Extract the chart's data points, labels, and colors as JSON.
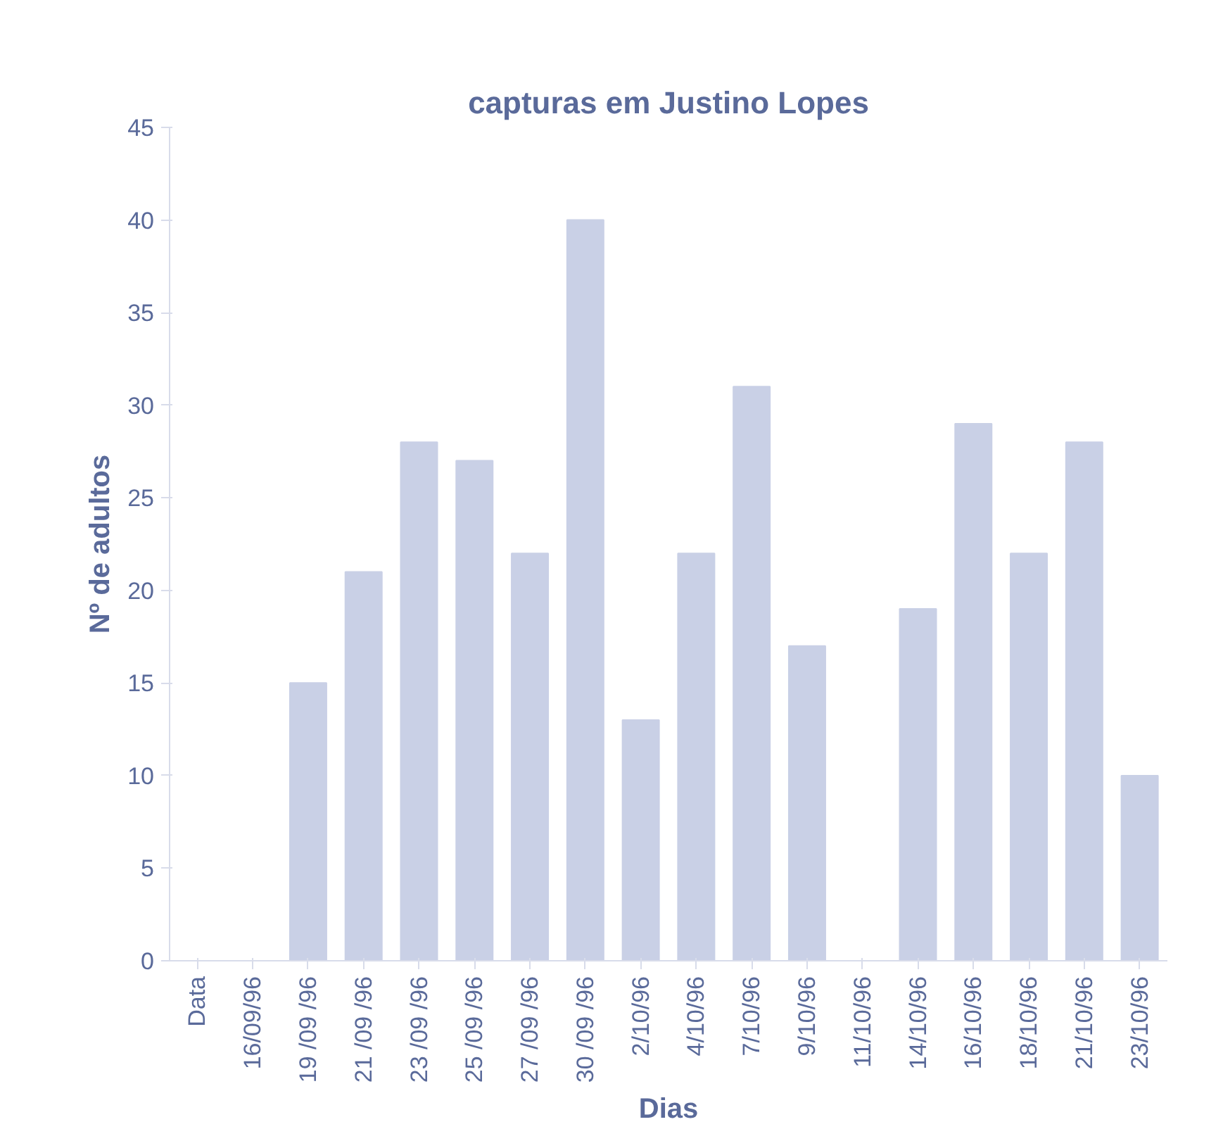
{
  "chart_data": {
    "type": "bar",
    "title": "capturas em Justino Lopes",
    "xlabel": "Dias",
    "ylabel": "Nº de adultos",
    "categories": [
      "Data",
      "16/09/96",
      "19 /09 /96",
      "21 /09 /96",
      "23 /09 /96",
      "25 /09 /96",
      "27 /09 /96",
      "30 /09 /96",
      "2/10/96",
      "4/10/96",
      "7/10/96",
      "9/10/96",
      "11/10/96",
      "14/10/96",
      "16/10/96",
      "18/10/96",
      "21/10/96",
      "23/10/96"
    ],
    "values": [
      null,
      0,
      15,
      21,
      28,
      27,
      22,
      40,
      13,
      22,
      31,
      17,
      0,
      19,
      29,
      22,
      28,
      10
    ],
    "color": "#c9d0e6",
    "ylim": [
      0,
      45
    ],
    "yticks": [
      0,
      5,
      10,
      15,
      20,
      25,
      30,
      35,
      40,
      45
    ],
    "grid": false
  }
}
